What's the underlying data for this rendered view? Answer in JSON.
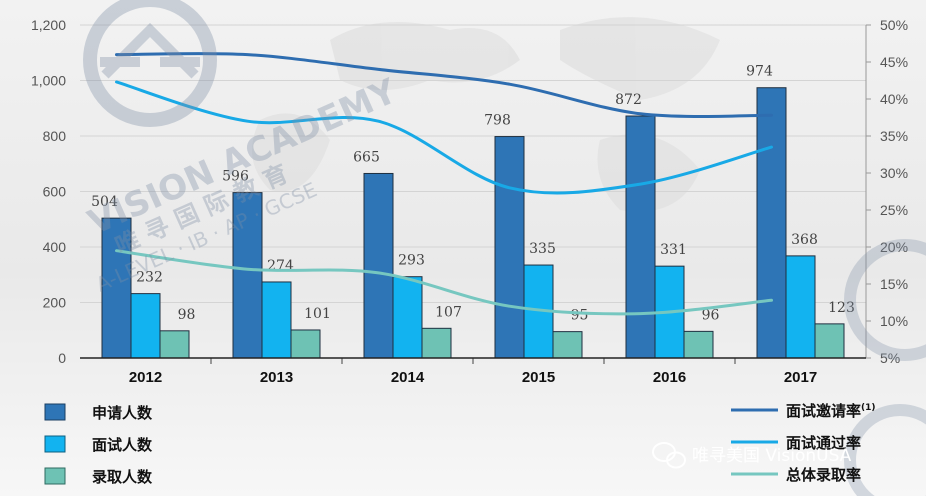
{
  "chart_data": {
    "type": "bar",
    "categories": [
      "2012",
      "2013",
      "2014",
      "2015",
      "2016",
      "2017"
    ],
    "series": [
      {
        "name": "申请人数",
        "values": [
          504,
          596,
          665,
          798,
          872,
          974
        ],
        "color": "#2e75b6"
      },
      {
        "name": "面试人数",
        "values": [
          232,
          274,
          293,
          335,
          331,
          368
        ],
        "color": "#12b3f0"
      },
      {
        "name": "录取人数",
        "values": [
          98,
          101,
          107,
          95,
          96,
          123
        ],
        "color": "#6ec2b4"
      }
    ],
    "line_series": [
      {
        "name": "面试邀请率",
        "superscript": "(1)",
        "values": [
          46,
          46,
          44,
          42,
          38,
          37.8
        ],
        "color": "#2e6db0"
      },
      {
        "name": "面试通过率",
        "values": [
          42.3,
          37,
          37,
          28,
          28.5,
          33.5
        ],
        "color": "#18a9e6"
      },
      {
        "name": "总体录取率",
        "values": [
          19.5,
          17,
          16.5,
          12,
          11,
          12.8
        ],
        "color": "#76c7c0"
      }
    ],
    "ylim": [
      0,
      1200
    ],
    "yticks": [
      "0",
      "200",
      "400",
      "600",
      "800",
      "1,000",
      "1,200"
    ],
    "y2lim": [
      5,
      50
    ],
    "y2ticks": [
      "5%",
      "10%",
      "15%",
      "20%",
      "25%",
      "30%",
      "35%",
      "40%",
      "45%",
      "50%"
    ],
    "grid": true,
    "legend_position": "bottom"
  },
  "watermark": {
    "brand_line1": "VISION ACADEMY",
    "brand_line2": "唯 寻 国 际 教 育",
    "brand_line3": "A-LEVEL · IB · AP · GCSE",
    "wechat_label": "唯寻美国 VisionUSA"
  }
}
